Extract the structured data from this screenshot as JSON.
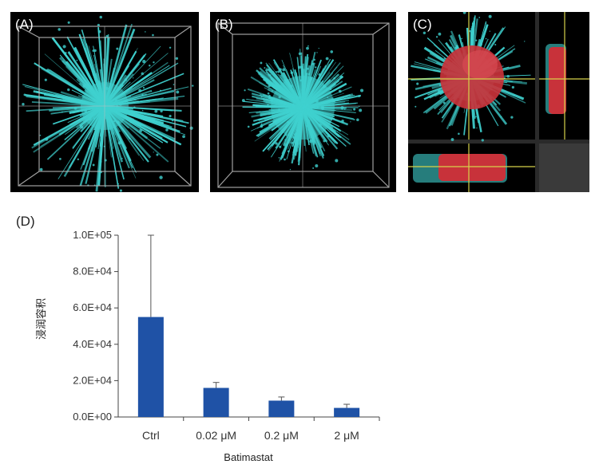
{
  "panels": {
    "a_label": "(A)",
    "b_label": "(B)",
    "c_label": "(C)",
    "d_label": "(D)"
  },
  "colors": {
    "cyan": "#3fd1cf",
    "red": "#c8323a",
    "crosshair": "#d6d24a",
    "bar": "#1f52a6"
  },
  "chart_data": {
    "type": "bar",
    "categories": [
      "Ctrl",
      "0.02 μM",
      "0.2 μM",
      "2 μM"
    ],
    "values": [
      55000,
      16000,
      9000,
      5000
    ],
    "error_upper": [
      100000,
      19000,
      11000,
      7000
    ],
    "xlabel": "Batimastat",
    "ylabel": "浸润容积",
    "ylim": [
      0,
      100000
    ],
    "yticks": [
      "0.0E+00",
      "2.0E+04",
      "4.0E+04",
      "6.0E+04",
      "8.0E+04",
      "1.0E+05"
    ],
    "ytick_values": [
      0,
      20000,
      40000,
      60000,
      80000,
      100000
    ],
    "grid": false
  }
}
